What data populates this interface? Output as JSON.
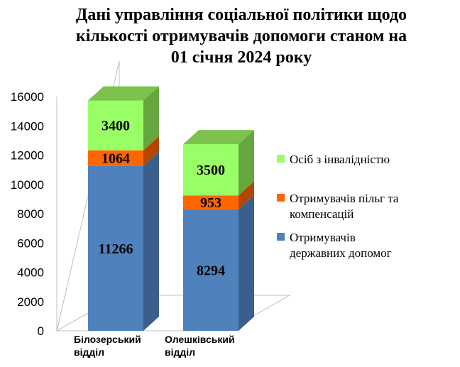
{
  "chart_data": {
    "type": "bar",
    "stacked": true,
    "three_d": true,
    "title_lines": [
      "Дані  управління соціальної політики щодо",
      "кількості отримувачів допомоги станом на",
      "01 січня 2024 року"
    ],
    "categories": [
      [
        "Білозерський",
        "відділ"
      ],
      [
        "Олешківський",
        "відділ"
      ]
    ],
    "ylim": [
      0,
      16000
    ],
    "yticks": [
      "0",
      "2000",
      "4000",
      "6000",
      "8000",
      "10000",
      "12000",
      "14000",
      "16000"
    ],
    "series": [
      {
        "name_lines": [
          "Отримувачів",
          "державних  допомог"
        ],
        "values": [
          11266,
          8294
        ],
        "color": "#4f81bd",
        "side": "#3a5f8c",
        "top": "#6b97cf"
      },
      {
        "name_lines": [
          "Отримувачів  пільг та",
          "компенсацій"
        ],
        "values": [
          1064,
          953
        ],
        "color": "#ff6600",
        "side": "#b34700",
        "top": "#ff8533"
      },
      {
        "name_lines": [
          "Осіб з інвалідністю"
        ],
        "values": [
          3400,
          3500
        ],
        "color": "#99ff66",
        "side": "#66a63f",
        "top": "#7cc24c"
      }
    ],
    "legend_position": "right",
    "grid": false
  }
}
